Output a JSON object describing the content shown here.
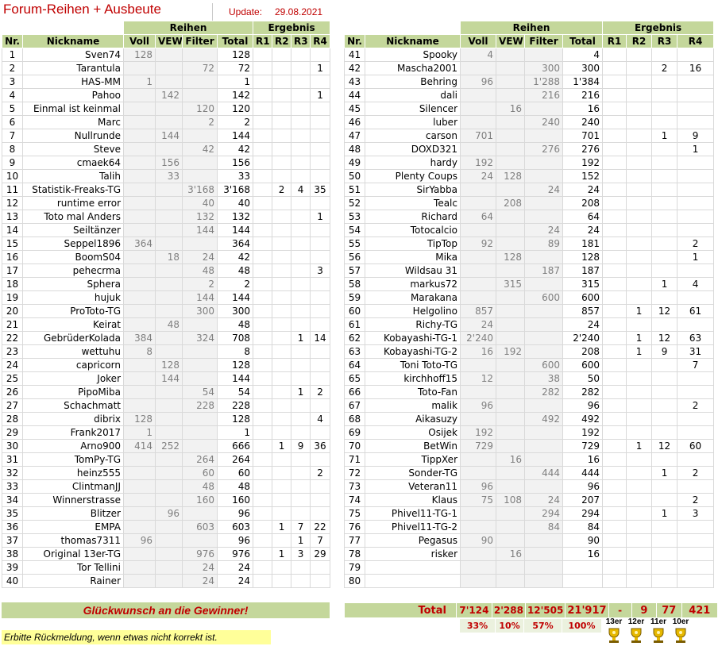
{
  "header": {
    "title": "Forum-Reihen + Ausbeute",
    "update_label": "Update:",
    "update_date": "29.08.2021"
  },
  "columns": {
    "group_reihen": "Reihen",
    "group_ergebnis": "Ergebnis",
    "nr": "Nr.",
    "nickname": "Nickname",
    "voll": "Voll",
    "vew": "VEW",
    "filter": "Filter",
    "total": "Total",
    "r1": "R1",
    "r2": "R2",
    "r3": "R3",
    "r4": "R4"
  },
  "left_rows": [
    {
      "nr": "1",
      "nick": "Sven74",
      "voll": "128",
      "vew": "",
      "filter": "",
      "total": "128",
      "r1": "",
      "r2": "",
      "r3": "",
      "r4": ""
    },
    {
      "nr": "2",
      "nick": "Tarantula",
      "voll": "",
      "vew": "",
      "filter": "72",
      "total": "72",
      "r1": "",
      "r2": "",
      "r3": "",
      "r4": "1"
    },
    {
      "nr": "3",
      "nick": "HAS-MM",
      "voll": "1",
      "vew": "",
      "filter": "",
      "total": "1",
      "r1": "",
      "r2": "",
      "r3": "",
      "r4": ""
    },
    {
      "nr": "4",
      "nick": "Pahoo",
      "voll": "",
      "vew": "142",
      "filter": "",
      "total": "142",
      "r1": "",
      "r2": "",
      "r3": "",
      "r4": "1"
    },
    {
      "nr": "5",
      "nick": "Einmal ist keinmal",
      "voll": "",
      "vew": "",
      "filter": "120",
      "total": "120",
      "r1": "",
      "r2": "",
      "r3": "",
      "r4": ""
    },
    {
      "nr": "6",
      "nick": "Marc",
      "voll": "",
      "vew": "",
      "filter": "2",
      "total": "2",
      "r1": "",
      "r2": "",
      "r3": "",
      "r4": ""
    },
    {
      "nr": "7",
      "nick": "Nullrunde",
      "voll": "",
      "vew": "144",
      "filter": "",
      "total": "144",
      "r1": "",
      "r2": "",
      "r3": "",
      "r4": ""
    },
    {
      "nr": "8",
      "nick": "Steve",
      "voll": "",
      "vew": "",
      "filter": "42",
      "total": "42",
      "r1": "",
      "r2": "",
      "r3": "",
      "r4": ""
    },
    {
      "nr": "9",
      "nick": "cmaek64",
      "voll": "",
      "vew": "156",
      "filter": "",
      "total": "156",
      "r1": "",
      "r2": "",
      "r3": "",
      "r4": ""
    },
    {
      "nr": "10",
      "nick": "Talih",
      "voll": "",
      "vew": "33",
      "filter": "",
      "total": "33",
      "r1": "",
      "r2": "",
      "r3": "",
      "r4": ""
    },
    {
      "nr": "11",
      "nick": "Statistik-Freaks-TG",
      "voll": "",
      "vew": "",
      "filter": "3'168",
      "total": "3'168",
      "r1": "",
      "r2": "2",
      "r3": "4",
      "r4": "35"
    },
    {
      "nr": "12",
      "nick": "runtime error",
      "voll": "",
      "vew": "",
      "filter": "40",
      "total": "40",
      "r1": "",
      "r2": "",
      "r3": "",
      "r4": ""
    },
    {
      "nr": "13",
      "nick": "Toto mal Anders",
      "voll": "",
      "vew": "",
      "filter": "132",
      "total": "132",
      "r1": "",
      "r2": "",
      "r3": "",
      "r4": "1"
    },
    {
      "nr": "14",
      "nick": "Seiltänzer",
      "voll": "",
      "vew": "",
      "filter": "144",
      "total": "144",
      "r1": "",
      "r2": "",
      "r3": "",
      "r4": ""
    },
    {
      "nr": "15",
      "nick": "Seppel1896",
      "voll": "364",
      "vew": "",
      "filter": "",
      "total": "364",
      "r1": "",
      "r2": "",
      "r3": "",
      "r4": ""
    },
    {
      "nr": "16",
      "nick": "BoomS04",
      "voll": "",
      "vew": "18",
      "filter": "24",
      "total": "42",
      "r1": "",
      "r2": "",
      "r3": "",
      "r4": ""
    },
    {
      "nr": "17",
      "nick": "pehecrma",
      "voll": "",
      "vew": "",
      "filter": "48",
      "total": "48",
      "r1": "",
      "r2": "",
      "r3": "",
      "r4": "3"
    },
    {
      "nr": "18",
      "nick": "Sphera",
      "voll": "",
      "vew": "",
      "filter": "2",
      "total": "2",
      "r1": "",
      "r2": "",
      "r3": "",
      "r4": ""
    },
    {
      "nr": "19",
      "nick": "hujuk",
      "voll": "",
      "vew": "",
      "filter": "144",
      "total": "144",
      "r1": "",
      "r2": "",
      "r3": "",
      "r4": ""
    },
    {
      "nr": "20",
      "nick": "ProToto-TG",
      "voll": "",
      "vew": "",
      "filter": "300",
      "total": "300",
      "r1": "",
      "r2": "",
      "r3": "",
      "r4": ""
    },
    {
      "nr": "21",
      "nick": "Keirat",
      "voll": "",
      "vew": "48",
      "filter": "",
      "total": "48",
      "r1": "",
      "r2": "",
      "r3": "",
      "r4": ""
    },
    {
      "nr": "22",
      "nick": "GebrüderKolada",
      "voll": "384",
      "vew": "",
      "filter": "324",
      "total": "708",
      "r1": "",
      "r2": "",
      "r3": "1",
      "r4": "14"
    },
    {
      "nr": "23",
      "nick": "wettuhu",
      "voll": "8",
      "vew": "",
      "filter": "",
      "total": "8",
      "r1": "",
      "r2": "",
      "r3": "",
      "r4": ""
    },
    {
      "nr": "24",
      "nick": "capricorn",
      "voll": "",
      "vew": "128",
      "filter": "",
      "total": "128",
      "r1": "",
      "r2": "",
      "r3": "",
      "r4": ""
    },
    {
      "nr": "25",
      "nick": "Joker",
      "voll": "",
      "vew": "144",
      "filter": "",
      "total": "144",
      "r1": "",
      "r2": "",
      "r3": "",
      "r4": ""
    },
    {
      "nr": "26",
      "nick": "PipoMiba",
      "voll": "",
      "vew": "",
      "filter": "54",
      "total": "54",
      "r1": "",
      "r2": "",
      "r3": "1",
      "r4": "2"
    },
    {
      "nr": "27",
      "nick": "Schachmatt",
      "voll": "",
      "vew": "",
      "filter": "228",
      "total": "228",
      "r1": "",
      "r2": "",
      "r3": "",
      "r4": ""
    },
    {
      "nr": "28",
      "nick": "dibrix",
      "voll": "128",
      "vew": "",
      "filter": "",
      "total": "128",
      "r1": "",
      "r2": "",
      "r3": "",
      "r4": "4"
    },
    {
      "nr": "29",
      "nick": "Frank2017",
      "voll": "1",
      "vew": "",
      "filter": "",
      "total": "1",
      "r1": "",
      "r2": "",
      "r3": "",
      "r4": ""
    },
    {
      "nr": "30",
      "nick": "Arno900",
      "voll": "414",
      "vew": "252",
      "filter": "",
      "total": "666",
      "r1": "",
      "r2": "1",
      "r3": "9",
      "r4": "36"
    },
    {
      "nr": "31",
      "nick": "TomPy-TG",
      "voll": "",
      "vew": "",
      "filter": "264",
      "total": "264",
      "r1": "",
      "r2": "",
      "r3": "",
      "r4": ""
    },
    {
      "nr": "32",
      "nick": "heinz555",
      "voll": "",
      "vew": "",
      "filter": "60",
      "total": "60",
      "r1": "",
      "r2": "",
      "r3": "",
      "r4": "2"
    },
    {
      "nr": "33",
      "nick": "ClintmanJJ",
      "voll": "",
      "vew": "",
      "filter": "48",
      "total": "48",
      "r1": "",
      "r2": "",
      "r3": "",
      "r4": ""
    },
    {
      "nr": "34",
      "nick": "Winnerstrasse",
      "voll": "",
      "vew": "",
      "filter": "160",
      "total": "160",
      "r1": "",
      "r2": "",
      "r3": "",
      "r4": ""
    },
    {
      "nr": "35",
      "nick": "Blitzer",
      "voll": "",
      "vew": "96",
      "filter": "",
      "total": "96",
      "r1": "",
      "r2": "",
      "r3": "",
      "r4": ""
    },
    {
      "nr": "36",
      "nick": "EMPA",
      "voll": "",
      "vew": "",
      "filter": "603",
      "total": "603",
      "r1": "",
      "r2": "1",
      "r3": "7",
      "r4": "22"
    },
    {
      "nr": "37",
      "nick": "thomas7311",
      "voll": "96",
      "vew": "",
      "filter": "",
      "total": "96",
      "r1": "",
      "r2": "",
      "r3": "1",
      "r4": "7"
    },
    {
      "nr": "38",
      "nick": "Original 13er-TG",
      "voll": "",
      "vew": "",
      "filter": "976",
      "total": "976",
      "r1": "",
      "r2": "1",
      "r3": "3",
      "r4": "29"
    },
    {
      "nr": "39",
      "nick": "Tor Tellini",
      "voll": "",
      "vew": "",
      "filter": "24",
      "total": "24",
      "r1": "",
      "r2": "",
      "r3": "",
      "r4": ""
    },
    {
      "nr": "40",
      "nick": "Rainer",
      "voll": "",
      "vew": "",
      "filter": "24",
      "total": "24",
      "r1": "",
      "r2": "",
      "r3": "",
      "r4": ""
    }
  ],
  "right_rows": [
    {
      "nr": "41",
      "nick": "Spooky",
      "voll": "4",
      "vew": "",
      "filter": "",
      "total": "4",
      "r1": "",
      "r2": "",
      "r3": "",
      "r4": ""
    },
    {
      "nr": "42",
      "nick": "Mascha2001",
      "voll": "",
      "vew": "",
      "filter": "300",
      "total": "300",
      "r1": "",
      "r2": "",
      "r3": "2",
      "r4": "16"
    },
    {
      "nr": "43",
      "nick": "Behring",
      "voll": "96",
      "vew": "",
      "filter": "1'288",
      "total": "1'384",
      "r1": "",
      "r2": "",
      "r3": "",
      "r4": ""
    },
    {
      "nr": "44",
      "nick": "dali",
      "voll": "",
      "vew": "",
      "filter": "216",
      "total": "216",
      "r1": "",
      "r2": "",
      "r3": "",
      "r4": ""
    },
    {
      "nr": "45",
      "nick": "Silencer",
      "voll": "",
      "vew": "16",
      "filter": "",
      "total": "16",
      "r1": "",
      "r2": "",
      "r3": "",
      "r4": ""
    },
    {
      "nr": "46",
      "nick": "luber",
      "voll": "",
      "vew": "",
      "filter": "240",
      "total": "240",
      "r1": "",
      "r2": "",
      "r3": "",
      "r4": ""
    },
    {
      "nr": "47",
      "nick": "carson",
      "voll": "701",
      "vew": "",
      "filter": "",
      "total": "701",
      "r1": "",
      "r2": "",
      "r3": "1",
      "r4": "9"
    },
    {
      "nr": "48",
      "nick": "DOXD321",
      "voll": "",
      "vew": "",
      "filter": "276",
      "total": "276",
      "r1": "",
      "r2": "",
      "r3": "",
      "r4": "1"
    },
    {
      "nr": "49",
      "nick": "hardy",
      "voll": "192",
      "vew": "",
      "filter": "",
      "total": "192",
      "r1": "",
      "r2": "",
      "r3": "",
      "r4": ""
    },
    {
      "nr": "50",
      "nick": "Plenty Coups",
      "voll": "24",
      "vew": "128",
      "filter": "",
      "total": "152",
      "r1": "",
      "r2": "",
      "r3": "",
      "r4": ""
    },
    {
      "nr": "51",
      "nick": "SirYabba",
      "voll": "",
      "vew": "",
      "filter": "24",
      "total": "24",
      "r1": "",
      "r2": "",
      "r3": "",
      "r4": ""
    },
    {
      "nr": "52",
      "nick": "Tealc",
      "voll": "",
      "vew": "208",
      "filter": "",
      "total": "208",
      "r1": "",
      "r2": "",
      "r3": "",
      "r4": ""
    },
    {
      "nr": "53",
      "nick": "Richard",
      "voll": "64",
      "vew": "",
      "filter": "",
      "total": "64",
      "r1": "",
      "r2": "",
      "r3": "",
      "r4": ""
    },
    {
      "nr": "54",
      "nick": "Totocalcio",
      "voll": "",
      "vew": "",
      "filter": "24",
      "total": "24",
      "r1": "",
      "r2": "",
      "r3": "",
      "r4": ""
    },
    {
      "nr": "55",
      "nick": "TipTop",
      "voll": "92",
      "vew": "",
      "filter": "89",
      "total": "181",
      "r1": "",
      "r2": "",
      "r3": "",
      "r4": "2"
    },
    {
      "nr": "56",
      "nick": "Mika",
      "voll": "",
      "vew": "128",
      "filter": "",
      "total": "128",
      "r1": "",
      "r2": "",
      "r3": "",
      "r4": "1"
    },
    {
      "nr": "57",
      "nick": "Wildsau 31",
      "voll": "",
      "vew": "",
      "filter": "187",
      "total": "187",
      "r1": "",
      "r2": "",
      "r3": "",
      "r4": ""
    },
    {
      "nr": "58",
      "nick": "markus72",
      "voll": "",
      "vew": "315",
      "filter": "",
      "total": "315",
      "r1": "",
      "r2": "",
      "r3": "1",
      "r4": "4"
    },
    {
      "nr": "59",
      "nick": "Marakana",
      "voll": "",
      "vew": "",
      "filter": "600",
      "total": "600",
      "r1": "",
      "r2": "",
      "r3": "",
      "r4": ""
    },
    {
      "nr": "60",
      "nick": "Helgolino",
      "voll": "857",
      "vew": "",
      "filter": "",
      "total": "857",
      "r1": "",
      "r2": "1",
      "r3": "12",
      "r4": "61"
    },
    {
      "nr": "61",
      "nick": "Richy-TG",
      "voll": "24",
      "vew": "",
      "filter": "",
      "total": "24",
      "r1": "",
      "r2": "",
      "r3": "",
      "r4": ""
    },
    {
      "nr": "62",
      "nick": "Kobayashi-TG-1",
      "voll": "2'240",
      "vew": "",
      "filter": "",
      "total": "2'240",
      "r1": "",
      "r2": "1",
      "r3": "12",
      "r4": "63"
    },
    {
      "nr": "63",
      "nick": "Kobayashi-TG-2",
      "voll": "16",
      "vew": "192",
      "filter": "",
      "total": "208",
      "r1": "",
      "r2": "1",
      "r3": "9",
      "r4": "31"
    },
    {
      "nr": "64",
      "nick": "Toni Toto-TG",
      "voll": "",
      "vew": "",
      "filter": "600",
      "total": "600",
      "r1": "",
      "r2": "",
      "r3": "",
      "r4": "7"
    },
    {
      "nr": "65",
      "nick": "kirchhoff15",
      "voll": "12",
      "vew": "",
      "filter": "38",
      "total": "50",
      "r1": "",
      "r2": "",
      "r3": "",
      "r4": ""
    },
    {
      "nr": "66",
      "nick": "Toto-Fan",
      "voll": "",
      "vew": "",
      "filter": "282",
      "total": "282",
      "r1": "",
      "r2": "",
      "r3": "",
      "r4": ""
    },
    {
      "nr": "67",
      "nick": "malik",
      "voll": "96",
      "vew": "",
      "filter": "",
      "total": "96",
      "r1": "",
      "r2": "",
      "r3": "",
      "r4": "2"
    },
    {
      "nr": "68",
      "nick": "Aikasuzy",
      "voll": "",
      "vew": "",
      "filter": "492",
      "total": "492",
      "r1": "",
      "r2": "",
      "r3": "",
      "r4": ""
    },
    {
      "nr": "69",
      "nick": "Osijek",
      "voll": "192",
      "vew": "",
      "filter": "",
      "total": "192",
      "r1": "",
      "r2": "",
      "r3": "",
      "r4": ""
    },
    {
      "nr": "70",
      "nick": "BetWin",
      "voll": "729",
      "vew": "",
      "filter": "",
      "total": "729",
      "r1": "",
      "r2": "1",
      "r3": "12",
      "r4": "60"
    },
    {
      "nr": "71",
      "nick": "TippXer",
      "voll": "",
      "vew": "16",
      "filter": "",
      "total": "16",
      "r1": "",
      "r2": "",
      "r3": "",
      "r4": ""
    },
    {
      "nr": "72",
      "nick": "Sonder-TG",
      "voll": "",
      "vew": "",
      "filter": "444",
      "total": "444",
      "r1": "",
      "r2": "",
      "r3": "1",
      "r4": "2"
    },
    {
      "nr": "73",
      "nick": "Veteran11",
      "voll": "96",
      "vew": "",
      "filter": "",
      "total": "96",
      "r1": "",
      "r2": "",
      "r3": "",
      "r4": ""
    },
    {
      "nr": "74",
      "nick": "Klaus",
      "voll": "75",
      "vew": "108",
      "filter": "24",
      "total": "207",
      "r1": "",
      "r2": "",
      "r3": "",
      "r4": "2"
    },
    {
      "nr": "75",
      "nick": "Phivel11-TG-1",
      "voll": "",
      "vew": "",
      "filter": "294",
      "total": "294",
      "r1": "",
      "r2": "",
      "r3": "1",
      "r4": "3"
    },
    {
      "nr": "76",
      "nick": "Phivel11-TG-2",
      "voll": "",
      "vew": "",
      "filter": "84",
      "total": "84",
      "r1": "",
      "r2": "",
      "r3": "",
      "r4": ""
    },
    {
      "nr": "77",
      "nick": "Pegasus",
      "voll": "90",
      "vew": "",
      "filter": "",
      "total": "90",
      "r1": "",
      "r2": "",
      "r3": "",
      "r4": ""
    },
    {
      "nr": "78",
      "nick": "risker",
      "voll": "",
      "vew": "16",
      "filter": "",
      "total": "16",
      "r1": "",
      "r2": "",
      "r3": "",
      "r4": ""
    },
    {
      "nr": "79",
      "nick": "",
      "voll": "",
      "vew": "",
      "filter": "",
      "total": "",
      "r1": "",
      "r2": "",
      "r3": "",
      "r4": ""
    },
    {
      "nr": "80",
      "nick": "",
      "voll": "",
      "vew": "",
      "filter": "",
      "total": "",
      "r1": "",
      "r2": "",
      "r3": "",
      "r4": ""
    }
  ],
  "footer": {
    "congrats": "Glückwunsch an die Gewinner!",
    "total_label": "Total",
    "totals": {
      "voll": "7'124",
      "vew": "2'288",
      "filter": "12'505",
      "total": "21'917",
      "r1": "-",
      "r2": "9",
      "r3": "77",
      "r4": "421"
    },
    "percent": {
      "voll": "33%",
      "vew": "10%",
      "filter": "57%",
      "total": "100%"
    },
    "feedback": "Erbitte Rückmeldung, wenn etwas nicht korrekt ist."
  },
  "trophies": [
    {
      "label": "13er",
      "icon": "trophy-13er-icon"
    },
    {
      "label": "12er",
      "icon": "trophy-12er-icon"
    },
    {
      "label": "11er",
      "icon": "trophy-11er-icon"
    },
    {
      "label": "10er",
      "icon": "trophy-10er-icon"
    }
  ],
  "colors": {
    "header_green": "#c4d79b",
    "title_red": "#c00000",
    "pale_green": "#ebf1de",
    "feedback_yellow": "#ffff99"
  }
}
